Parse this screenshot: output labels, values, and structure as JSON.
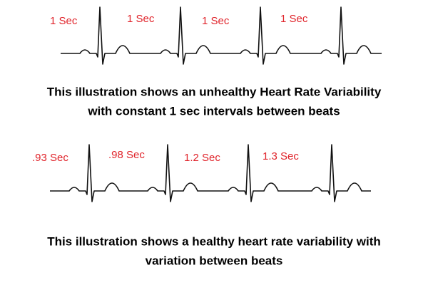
{
  "panels": [
    {
      "intervals": [
        "1 Sec",
        "1 Sec",
        "1 Sec",
        "1 Sec"
      ],
      "caption": [
        "This illustration shows an unhealthy Heart Rate Variability",
        "with constant 1 sec intervals between beats"
      ]
    },
    {
      "intervals": [
        ".93 Sec",
        ".98 Sec",
        "1.2 Sec",
        "1.3 Sec"
      ],
      "caption": [
        "This illustration shows a healthy heart rate variability with",
        "variation between beats"
      ]
    }
  ]
}
